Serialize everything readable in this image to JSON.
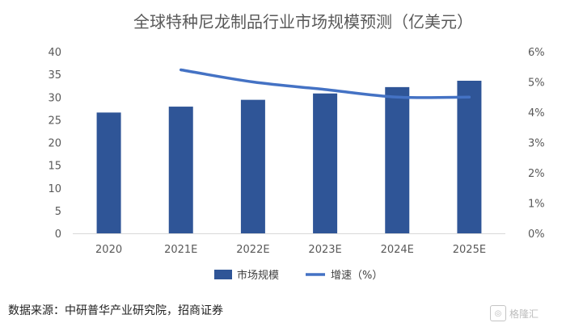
{
  "chart_data": {
    "type": "bar",
    "title": "全球特种尼龙制品行业市场规模预测（亿美元）",
    "categories": [
      "2020",
      "2021E",
      "2022E",
      "2023E",
      "2024E",
      "2025E"
    ],
    "series": [
      {
        "name": "市场规模",
        "type": "bar",
        "axis": "left",
        "values": [
          26.6,
          27.9,
          29.4,
          30.8,
          32.2,
          33.6
        ]
      },
      {
        "name": "增速（%）",
        "type": "line",
        "axis": "right",
        "values": [
          null,
          5.4,
          5.0,
          4.75,
          4.5,
          4.5
        ]
      }
    ],
    "y_left": {
      "ticks": [
        "0",
        "5",
        "10",
        "15",
        "20",
        "25",
        "30",
        "35",
        "40"
      ],
      "ylim": [
        0,
        40
      ]
    },
    "y_right": {
      "ticks": [
        "0%",
        "1%",
        "2%",
        "3%",
        "4%",
        "5%",
        "6%"
      ],
      "ylim": [
        0,
        6
      ]
    },
    "legend_position": "bottom",
    "colors": {
      "bar": "#2f5597",
      "line": "#4472c4",
      "title": "#595959",
      "axis_text": "#595959"
    }
  },
  "source_text": "数据来源：中研普华产业研究院，招商证券",
  "watermark": {
    "text": "格隆汇",
    "icon": "watermark-logo-icon",
    "logo_glyph": "◎"
  }
}
